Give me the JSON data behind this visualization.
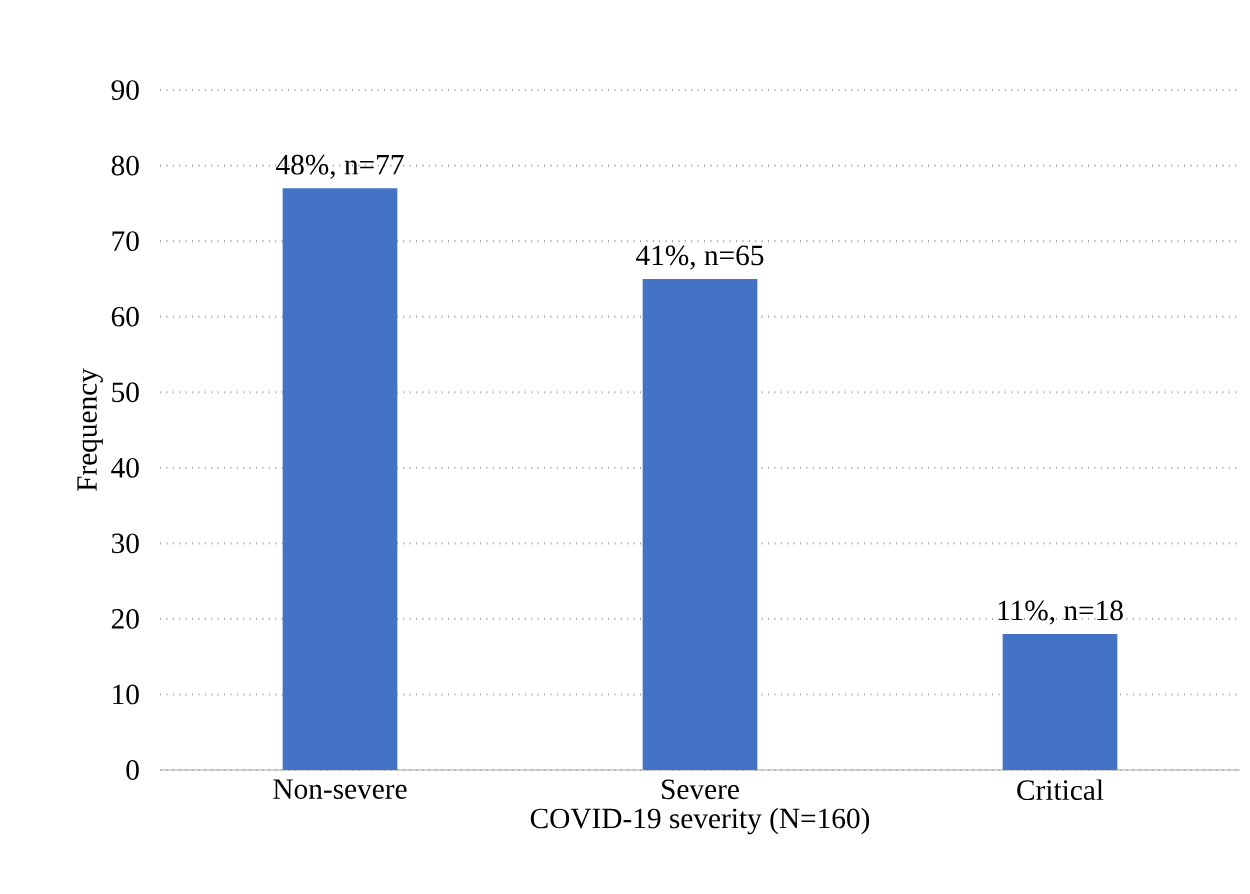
{
  "chart_data": {
    "type": "bar",
    "categories": [
      "Non-severe",
      "Severe",
      "Critical"
    ],
    "values": [
      77,
      65,
      18
    ],
    "value_labels": [
      "48%, n=77",
      "41%, n=65",
      "11%, n=18"
    ],
    "color": "#4472c4",
    "xlabel": "COVID-19 severity (N=160)",
    "ylabel": "Frequency",
    "ylim": [
      0,
      90
    ],
    "yticks": [
      0,
      10,
      20,
      30,
      40,
      50,
      60,
      70,
      80,
      90
    ],
    "grid": "y"
  }
}
